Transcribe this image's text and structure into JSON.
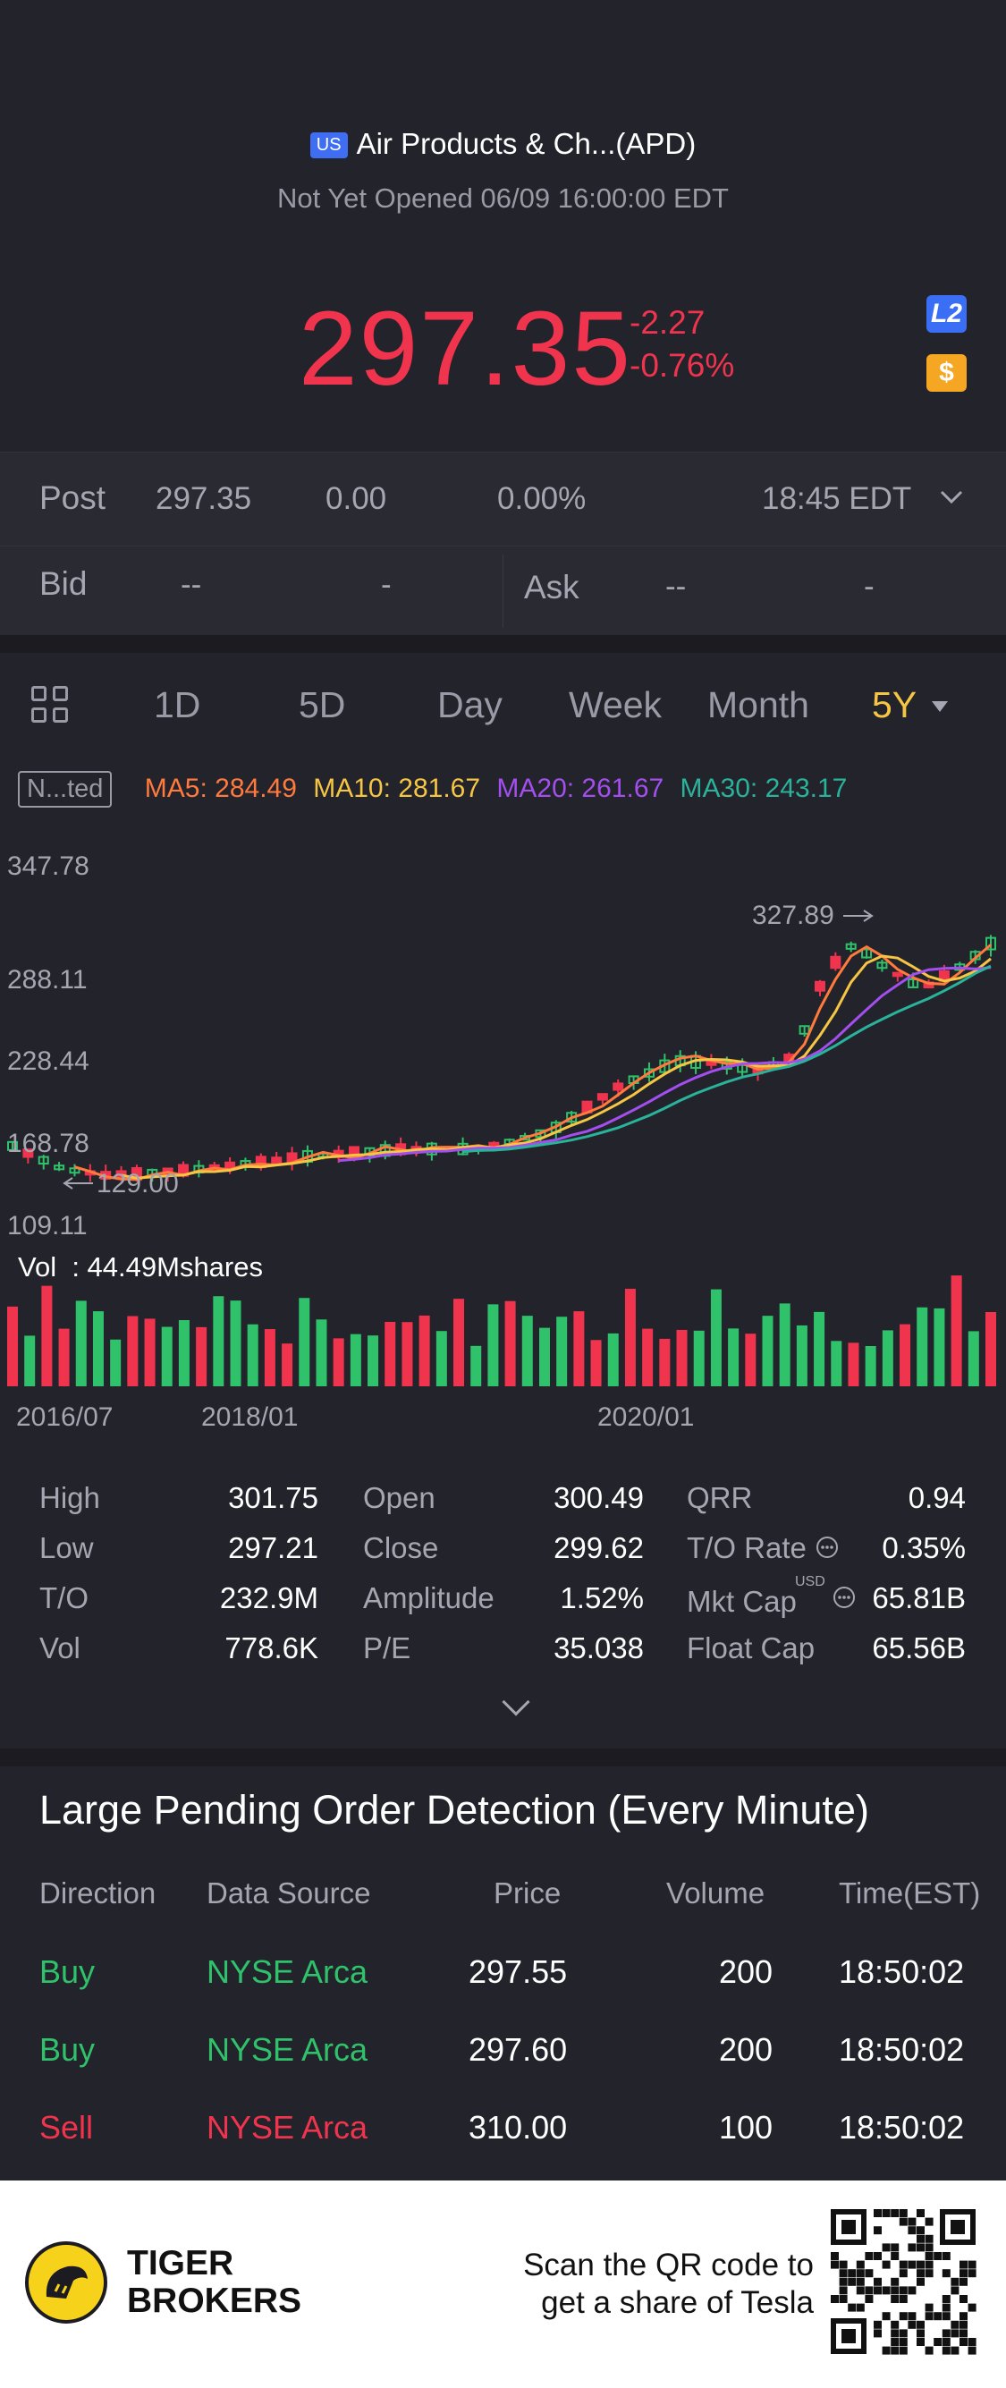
{
  "header": {
    "market_badge": "US",
    "title": "Air Products & Ch...(APD)",
    "status": "Not Yet Opened 06/09 16:00:00 EDT",
    "price": "297.35",
    "change": "-2.27",
    "change_pct": "-0.76%",
    "l2_badge": "L2",
    "dollar_badge": "$"
  },
  "post": {
    "label": "Post",
    "price": "297.35",
    "change": "0.00",
    "change_pct": "0.00%",
    "time": "18:45 EDT"
  },
  "bid_ask": {
    "bid_label": "Bid",
    "bid_price": "--",
    "bid_size": "-",
    "ask_label": "Ask",
    "ask_price": "--",
    "ask_size": "-"
  },
  "tabs": [
    "1D",
    "5D",
    "Day",
    "Week",
    "Month",
    "5Y"
  ],
  "active_tab": "5Y",
  "ma": {
    "badge": "N...ted",
    "ma5": "MA5: 284.49",
    "ma10": "MA10: 281.67",
    "ma20": "MA20: 261.67",
    "ma30": "MA30: 243.17"
  },
  "chart_data": {
    "type": "candlestick",
    "y_ticks": [
      "347.78",
      "288.11",
      "228.44",
      "168.78",
      "109.11"
    ],
    "high_marker": "327.89",
    "low_marker": "129.00",
    "volume_label": "Vol  : 44.49Mshares",
    "x_ticks": [
      "2016/07",
      "2018/01",
      "2020/01"
    ],
    "ylim": [
      109.11,
      347.78
    ],
    "colors": {
      "up": "#2fc26b",
      "down": "#f0344e",
      "ma5": "#ff7a3c",
      "ma10": "#f6c544",
      "ma20": "#a34ff0",
      "ma30": "#2ab39a"
    }
  },
  "stats": {
    "high_label": "High",
    "high": "301.75",
    "low_label": "Low",
    "low": "297.21",
    "to_label": "T/O",
    "to": "232.9M",
    "vol_label": "Vol",
    "vol": "778.6K",
    "open_label": "Open",
    "open": "300.49",
    "close_label": "Close",
    "close": "299.62",
    "amp_label": "Amplitude",
    "amp": "1.52%",
    "pe_label": "P/E",
    "pe": "35.038",
    "qrr_label": "QRR",
    "qrr": "0.94",
    "torate_label": "T/O Rate",
    "torate": "0.35%",
    "mktcap_label": "Mkt Cap",
    "mktcap_unit": "USD",
    "mktcap": "65.81B",
    "floatcap_label": "Float Cap",
    "floatcap": "65.56B"
  },
  "large_pending": {
    "title": "Large Pending Order Detection (Every Minute)",
    "headers": [
      "Direction",
      "Data Source",
      "Price",
      "Volume",
      "Time(EST)"
    ],
    "rows": [
      {
        "direction": "Buy",
        "source": "NYSE Arca",
        "price": "297.55",
        "volume": "200",
        "time": "18:50:02"
      },
      {
        "direction": "Buy",
        "source": "NYSE Arca",
        "price": "297.60",
        "volume": "200",
        "time": "18:50:02"
      },
      {
        "direction": "Sell",
        "source": "NYSE Arca",
        "price": "310.00",
        "volume": "100",
        "time": "18:50:02"
      }
    ]
  },
  "footer": {
    "brand_line1": "TIGER",
    "brand_line2": "BROKERS",
    "scan_line1": "Scan the QR code to",
    "scan_line2": "get a share of Tesla"
  }
}
